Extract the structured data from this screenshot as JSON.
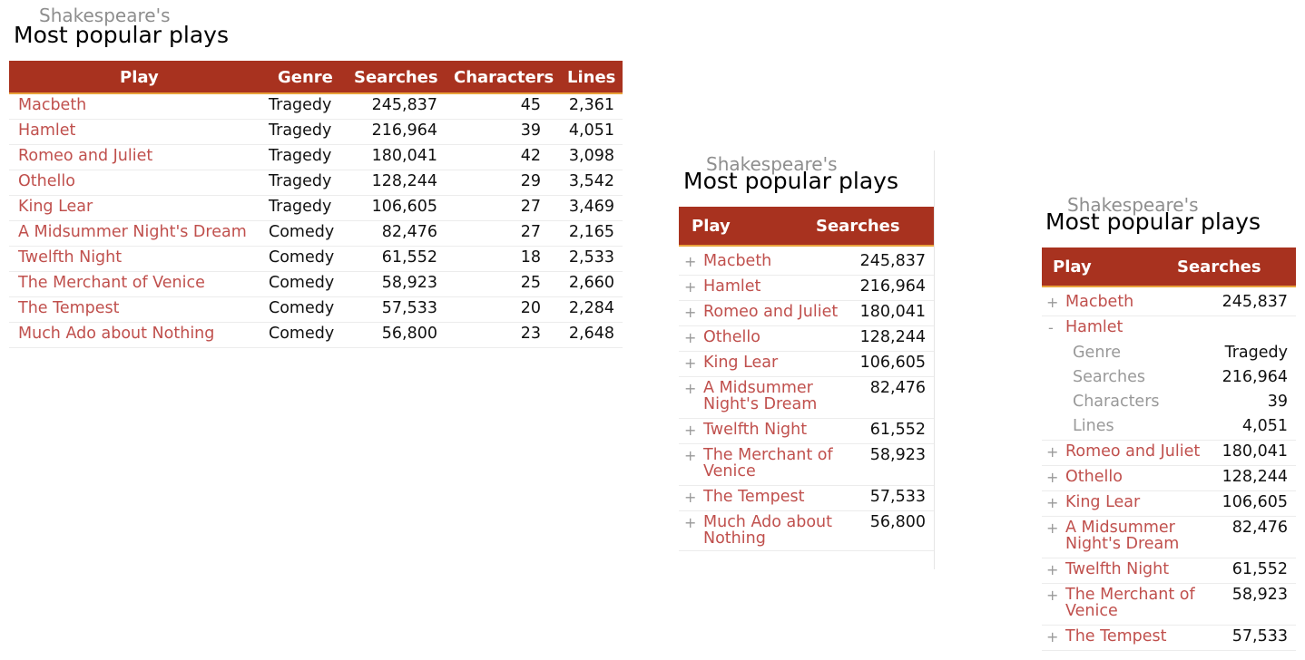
{
  "kicker": "Shakespeare's",
  "title": "Most popular plays",
  "columns": {
    "play": "Play",
    "genre": "Genre",
    "searches": "Searches",
    "characters": "Characters",
    "lines": "Lines"
  },
  "detail_labels": {
    "genre": "Genre",
    "searches": "Searches",
    "characters": "Characters",
    "lines": "Lines"
  },
  "toggle": {
    "collapsed": "+",
    "expanded": "-"
  },
  "plays": [
    {
      "play": "Macbeth",
      "genre": "Tragedy",
      "searches": "245,837",
      "characters": "45",
      "lines": "2,361",
      "play_wrap": "Macbeth"
    },
    {
      "play": "Hamlet",
      "genre": "Tragedy",
      "searches": "216,964",
      "characters": "39",
      "lines": "4,051",
      "play_wrap": "Hamlet"
    },
    {
      "play": "Romeo and Juliet",
      "genre": "Tragedy",
      "searches": "180,041",
      "characters": "42",
      "lines": "3,098",
      "play_wrap": "Romeo and Juliet"
    },
    {
      "play": "Othello",
      "genre": "Tragedy",
      "searches": "128,244",
      "characters": "29",
      "lines": "3,542",
      "play_wrap": "Othello"
    },
    {
      "play": "King Lear",
      "genre": "Tragedy",
      "searches": "106,605",
      "characters": "27",
      "lines": "3,469",
      "play_wrap": "King Lear"
    },
    {
      "play": "A Midsummer Night's Dream",
      "genre": "Comedy",
      "searches": "82,476",
      "characters": "27",
      "lines": "2,165"
    },
    {
      "play": "Twelfth Night",
      "genre": "Comedy",
      "searches": "61,552",
      "characters": "18",
      "lines": "2,533"
    },
    {
      "play": "The Merchant of Venice",
      "genre": "Comedy",
      "searches": "58,923",
      "characters": "25",
      "lines": "2,660"
    },
    {
      "play": "The Tempest",
      "genre": "Comedy",
      "searches": "57,533",
      "characters": "20",
      "lines": "2,284"
    },
    {
      "play": "Much Ado about Nothing",
      "genre": "Comedy",
      "searches": "56,800",
      "characters": "23",
      "lines": "2,648"
    }
  ],
  "expanded_play": "Hamlet",
  "colors": {
    "header": "#a8321f",
    "header_rule": "#e9a23b",
    "link": "#c0504d",
    "muted": "#999999"
  }
}
